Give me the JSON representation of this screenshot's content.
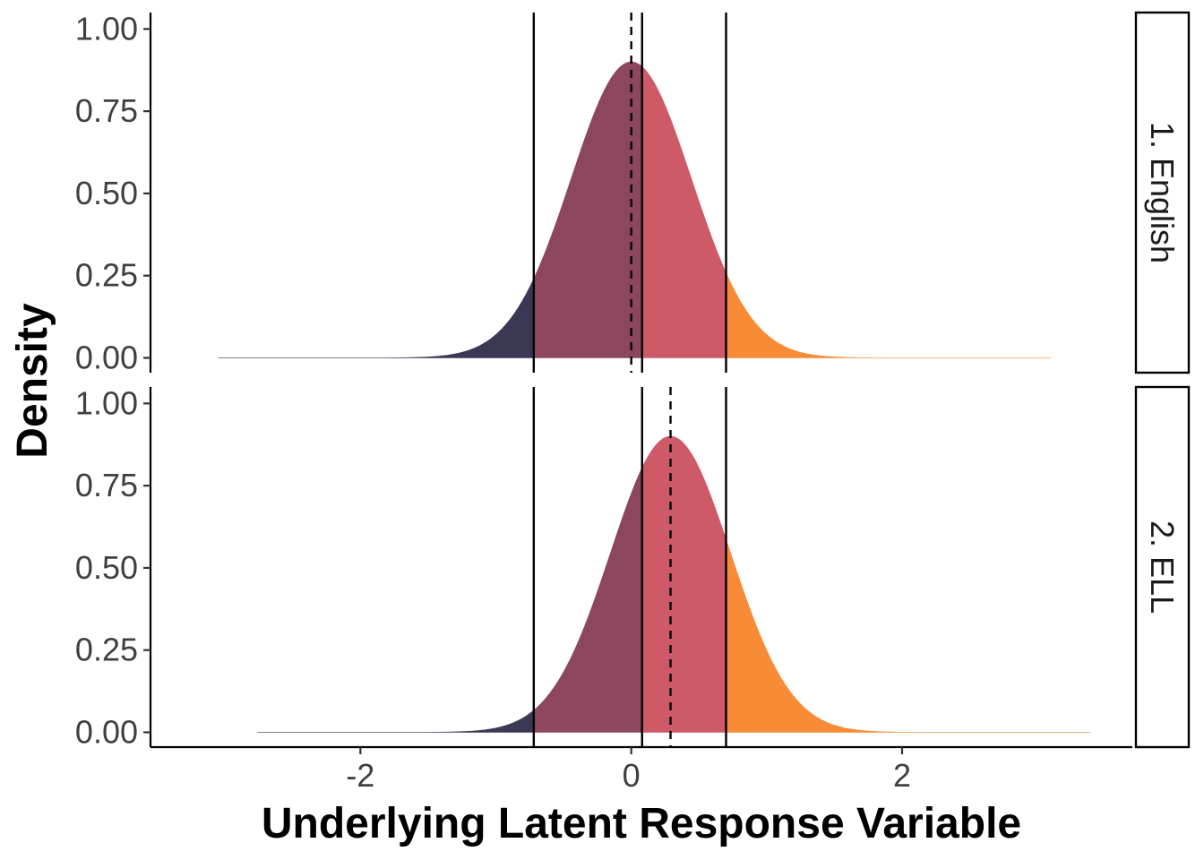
{
  "chart_data": {
    "type": "area",
    "title": "",
    "xlabel": "Underlying Latent Response Variable",
    "ylabel": "Density",
    "xlim": [
      -3.55,
      3.7
    ],
    "ylim": [
      -0.045,
      1.05
    ],
    "x_ticks": [
      {
        "value": -2,
        "label": "-2"
      },
      {
        "value": 0,
        "label": "0"
      },
      {
        "value": 2,
        "label": "2"
      }
    ],
    "y_ticks": [
      {
        "value": 0,
        "label": "0.00"
      },
      {
        "value": 0.25,
        "label": "0.25"
      },
      {
        "value": 0.5,
        "label": "0.50"
      },
      {
        "value": 0.75,
        "label": "0.75"
      },
      {
        "value": 1,
        "label": "1.00"
      }
    ],
    "grid": false,
    "legend": "none",
    "thresholds": [
      -0.72,
      0.08,
      0.7
    ],
    "region_colors": [
      "#3a3854",
      "#8c475e",
      "#ce5a68",
      "#f88b35"
    ],
    "line_color": "#000000",
    "panels": [
      {
        "strip_label": "1. English",
        "distribution": "normal",
        "mean": 0.0,
        "peak_density": 0.9,
        "x_range": [
          -3.05,
          3.1
        ]
      },
      {
        "strip_label": "2. ELL",
        "distribution": "normal",
        "mean": 0.29,
        "peak_density": 0.9,
        "x_range": [
          -2.76,
          3.39
        ]
      }
    ]
  }
}
